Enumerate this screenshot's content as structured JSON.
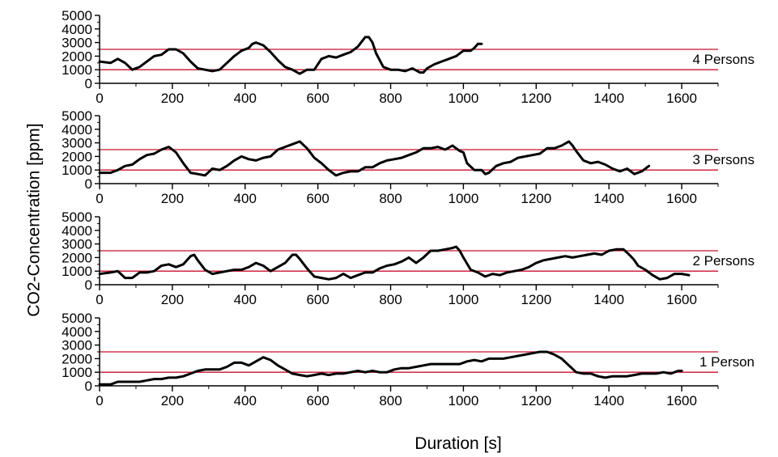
{
  "chart_data": {
    "type": "line",
    "xlabel": "Duration [s]",
    "ylabel": "CO2-Concentration [ppm]",
    "xlim": [
      0,
      1700
    ],
    "ylim": [
      0,
      5000
    ],
    "x_ticks": [
      0,
      200,
      400,
      600,
      800,
      1000,
      1200,
      1400,
      1600
    ],
    "y_ticks": [
      0,
      1000,
      2000,
      3000,
      4000,
      5000
    ],
    "reference_lines": [
      1000,
      2500
    ],
    "colors": {
      "series": "#000000",
      "reference": "#c8102e",
      "axis": "#000000"
    },
    "panels": [
      {
        "label": "4 Persons",
        "series": [
          {
            "x": [
              0,
              30,
              50,
              70,
              90,
              110,
              130,
              150,
              170,
              190,
              210,
              230,
              250,
              270,
              290,
              310,
              330,
              350,
              370,
              390,
              410,
              420,
              430,
              450,
              470,
              490,
              510,
              530,
              550,
              570,
              590,
              610,
              630,
              650,
              670,
              690,
              710,
              730,
              740,
              750,
              760,
              780,
              800,
              820,
              840,
              860,
              880,
              890,
              900,
              920,
              940,
              960,
              980,
              1000,
              1020,
              1030,
              1040,
              1050
            ],
            "y": [
              1600,
              1500,
              1800,
              1500,
              1000,
              1200,
              1600,
              2000,
              2100,
              2500,
              2500,
              2200,
              1600,
              1100,
              1000,
              900,
              1000,
              1500,
              2000,
              2400,
              2600,
              2900,
              3000,
              2800,
              2300,
              1700,
              1200,
              1000,
              700,
              1000,
              1000,
              1800,
              2000,
              1900,
              2100,
              2300,
              2700,
              3400,
              3400,
              3000,
              2200,
              1200,
              1000,
              1000,
              900,
              1100,
              800,
              800,
              1100,
              1400,
              1600,
              1800,
              2000,
              2400,
              2400,
              2600,
              2900,
              2900
            ]
          }
        ]
      },
      {
        "label": "3 Persons",
        "series": [
          {
            "x": [
              0,
              30,
              50,
              70,
              90,
              110,
              130,
              150,
              170,
              190,
              210,
              230,
              250,
              270,
              290,
              310,
              330,
              350,
              370,
              390,
              410,
              430,
              450,
              470,
              490,
              510,
              530,
              550,
              570,
              590,
              610,
              630,
              650,
              670,
              690,
              710,
              730,
              750,
              770,
              790,
              810,
              830,
              850,
              870,
              890,
              910,
              930,
              950,
              970,
              990,
              1000,
              1010,
              1030,
              1050,
              1060,
              1070,
              1090,
              1110,
              1130,
              1150,
              1170,
              1190,
              1210,
              1230,
              1250,
              1270,
              1290,
              1300,
              1310,
              1330,
              1350,
              1370,
              1390,
              1410,
              1430,
              1450,
              1470,
              1490,
              1510
            ],
            "y": [
              800,
              800,
              1000,
              1300,
              1400,
              1800,
              2100,
              2200,
              2500,
              2700,
              2300,
              1500,
              800,
              700,
              600,
              1100,
              1000,
              1300,
              1700,
              2000,
              1800,
              1700,
              1900,
              2000,
              2500,
              2700,
              2900,
              3100,
              2600,
              1900,
              1500,
              1000,
              600,
              800,
              900,
              900,
              1200,
              1200,
              1500,
              1700,
              1800,
              1900,
              2100,
              2300,
              2600,
              2600,
              2700,
              2500,
              2800,
              2400,
              2300,
              1500,
              1000,
              1000,
              700,
              800,
              1300,
              1500,
              1600,
              1900,
              2000,
              2100,
              2200,
              2600,
              2600,
              2800,
              3100,
              2800,
              2400,
              1700,
              1500,
              1600,
              1400,
              1100,
              900,
              1100,
              700,
              900,
              1300
            ]
          }
        ]
      },
      {
        "label": "2 Persons",
        "series": [
          {
            "x": [
              0,
              30,
              50,
              70,
              90,
              110,
              130,
              150,
              170,
              190,
              210,
              230,
              250,
              260,
              270,
              290,
              310,
              330,
              350,
              370,
              390,
              410,
              430,
              450,
              470,
              490,
              510,
              530,
              540,
              550,
              570,
              590,
              610,
              630,
              650,
              670,
              690,
              710,
              730,
              750,
              770,
              790,
              810,
              830,
              850,
              870,
              890,
              910,
              930,
              950,
              970,
              980,
              990,
              1000,
              1020,
              1040,
              1060,
              1080,
              1100,
              1120,
              1140,
              1160,
              1180,
              1200,
              1220,
              1240,
              1260,
              1280,
              1300,
              1320,
              1340,
              1360,
              1380,
              1400,
              1420,
              1440,
              1460,
              1470,
              1480,
              1500,
              1520,
              1540,
              1560,
              1580,
              1600,
              1620
            ],
            "y": [
              800,
              900,
              1000,
              500,
              500,
              900,
              900,
              1000,
              1400,
              1500,
              1300,
              1500,
              2100,
              2200,
              1800,
              1100,
              800,
              900,
              1000,
              1100,
              1100,
              1300,
              1600,
              1400,
              1000,
              1300,
              1600,
              2200,
              2200,
              1900,
              1200,
              600,
              500,
              400,
              500,
              800,
              500,
              700,
              900,
              900,
              1200,
              1400,
              1500,
              1700,
              2000,
              1600,
              2000,
              2500,
              2500,
              2600,
              2700,
              2800,
              2500,
              2000,
              1100,
              900,
              600,
              800,
              700,
              900,
              1000,
              1100,
              1300,
              1600,
              1800,
              1900,
              2000,
              2100,
              2000,
              2100,
              2200,
              2300,
              2200,
              2500,
              2600,
              2600,
              2100,
              1800,
              1400,
              1100,
              700,
              400,
              500,
              800,
              800,
              700
            ]
          }
        ]
      },
      {
        "label": "1 Person",
        "series": [
          {
            "x": [
              0,
              30,
              50,
              70,
              90,
              110,
              130,
              150,
              170,
              190,
              210,
              230,
              250,
              270,
              290,
              310,
              330,
              350,
              370,
              390,
              410,
              430,
              450,
              470,
              490,
              510,
              530,
              550,
              570,
              590,
              610,
              630,
              650,
              670,
              690,
              710,
              730,
              750,
              770,
              790,
              810,
              830,
              850,
              870,
              890,
              910,
              930,
              950,
              970,
              990,
              1010,
              1030,
              1050,
              1070,
              1090,
              1110,
              1130,
              1150,
              1170,
              1190,
              1210,
              1230,
              1250,
              1270,
              1290,
              1310,
              1330,
              1350,
              1370,
              1390,
              1410,
              1430,
              1450,
              1470,
              1490,
              1510,
              1530,
              1550,
              1570,
              1590,
              1600
            ],
            "y": [
              100,
              100,
              300,
              300,
              300,
              300,
              400,
              500,
              500,
              600,
              600,
              700,
              900,
              1100,
              1200,
              1200,
              1200,
              1400,
              1700,
              1700,
              1500,
              1800,
              2100,
              1900,
              1500,
              1200,
              900,
              800,
              700,
              800,
              900,
              800,
              900,
              900,
              1000,
              1100,
              1000,
              1100,
              1000,
              1000,
              1200,
              1300,
              1300,
              1400,
              1500,
              1600,
              1600,
              1600,
              1600,
              1600,
              1800,
              1900,
              1800,
              2000,
              2000,
              2000,
              2100,
              2200,
              2300,
              2400,
              2500,
              2500,
              2300,
              2000,
              1500,
              1000,
              900,
              900,
              700,
              600,
              700,
              700,
              700,
              800,
              900,
              900,
              900,
              1000,
              900,
              1100,
              1100
            ]
          }
        ]
      }
    ]
  }
}
